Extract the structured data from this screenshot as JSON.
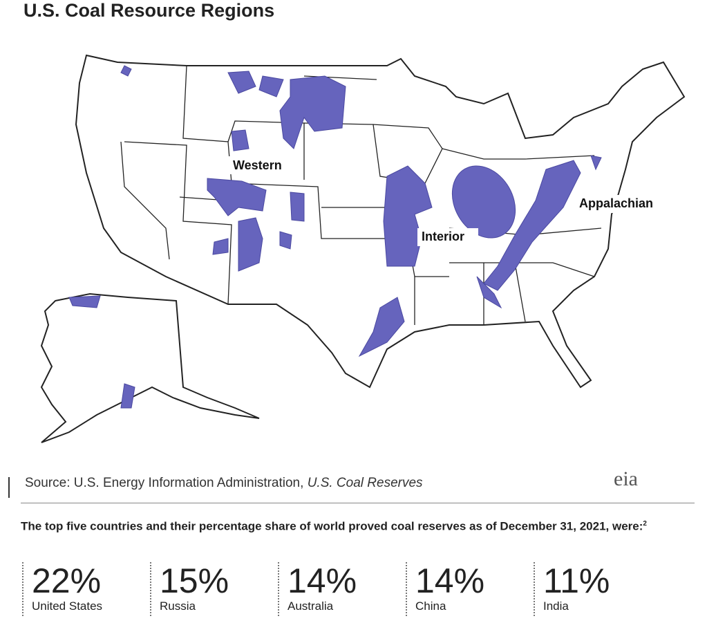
{
  "header": {
    "title": "U.S. Coal Resource Regions"
  },
  "map": {
    "labels": [
      "Western",
      "Interior",
      "Appalachian"
    ]
  },
  "source": {
    "text": "Source: U.S. Energy Information Administration,",
    "italic": "U.S. Coal Reserves",
    "logo": "eia"
  },
  "intro": {
    "text": "The top five countries and their percentage share of world proved coal reserves as of December 31, 2021, were:",
    "footnote": "2"
  },
  "stats": [
    {
      "value": "22%",
      "label": "United States"
    },
    {
      "value": "15%",
      "label": "Russia"
    },
    {
      "value": "14%",
      "label": "Australia"
    },
    {
      "value": "14%",
      "label": "China"
    },
    {
      "value": "11%",
      "label": "India"
    }
  ]
}
